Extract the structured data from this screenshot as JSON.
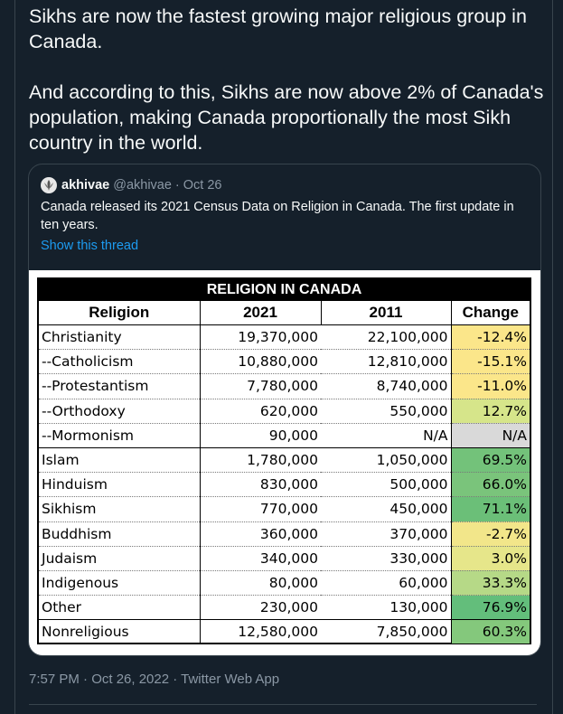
{
  "tweet": {
    "text_1": "Sikhs are now the fastest growing major religious group in Canada.",
    "text_2": "And according to this, Sikhs are now above 2% of Canada's population, making Canada proportionally the most Sikh country in the world.",
    "timestamp": "7:57 PM · Oct 26, 2022 · Twitter Web App"
  },
  "quoted": {
    "name": "akhivae",
    "handle": "@akhivae",
    "dot": "·",
    "date": "Oct 26",
    "text": "Canada released its 2021 Census Data on Religion in Canada. The first update in ten years.",
    "show_thread": "Show this thread"
  },
  "table": {
    "title": "RELIGION IN CANADA",
    "headers": [
      "Religion",
      "2021",
      "2011",
      "Change"
    ],
    "rows": [
      {
        "religion": "Christianity",
        "y2021": "19,370,000",
        "y2011": "22,100,000",
        "change": "-12.4%",
        "color": "#fbe68a"
      },
      {
        "religion": "--Catholicism",
        "y2021": "10,880,000",
        "y2011": "12,810,000",
        "change": "-15.1%",
        "color": "#fbe68a"
      },
      {
        "religion": "--Protestantism",
        "y2021": "7,780,000",
        "y2011": "8,740,000",
        "change": "-11.0%",
        "color": "#fbe68a"
      },
      {
        "religion": "--Orthodoxy",
        "y2021": "620,000",
        "y2011": "550,000",
        "change": "12.7%",
        "color": "#d6e58a"
      },
      {
        "religion": "--Mormonism",
        "y2021": "90,000",
        "y2011": "N/A",
        "change": "N/A",
        "color": "#d9d9d9"
      },
      {
        "religion": "Islam",
        "y2021": "1,780,000",
        "y2011": "1,050,000",
        "change": "69.5%",
        "color": "#73c27a"
      },
      {
        "religion": "Hinduism",
        "y2021": "830,000",
        "y2011": "500,000",
        "change": "66.0%",
        "color": "#7ac47b"
      },
      {
        "religion": "Sikhism",
        "y2021": "770,000",
        "y2011": "450,000",
        "change": "71.1%",
        "color": "#6bbf78"
      },
      {
        "religion": "Buddhism",
        "y2021": "360,000",
        "y2011": "370,000",
        "change": "-2.7%",
        "color": "#f2e68a"
      },
      {
        "religion": "Judaism",
        "y2021": "340,000",
        "y2011": "330,000",
        "change": "3.0%",
        "color": "#e6e68a"
      },
      {
        "religion": "Indigenous",
        "y2021": "80,000",
        "y2011": "60,000",
        "change": "33.3%",
        "color": "#b6d987"
      },
      {
        "religion": "Other",
        "y2021": "230,000",
        "y2011": "130,000",
        "change": "76.9%",
        "color": "#63be7b"
      },
      {
        "religion": "Nonreligious",
        "y2021": "12,580,000",
        "y2011": "7,850,000",
        "change": "60.3%",
        "color": "#84c87c"
      }
    ]
  }
}
